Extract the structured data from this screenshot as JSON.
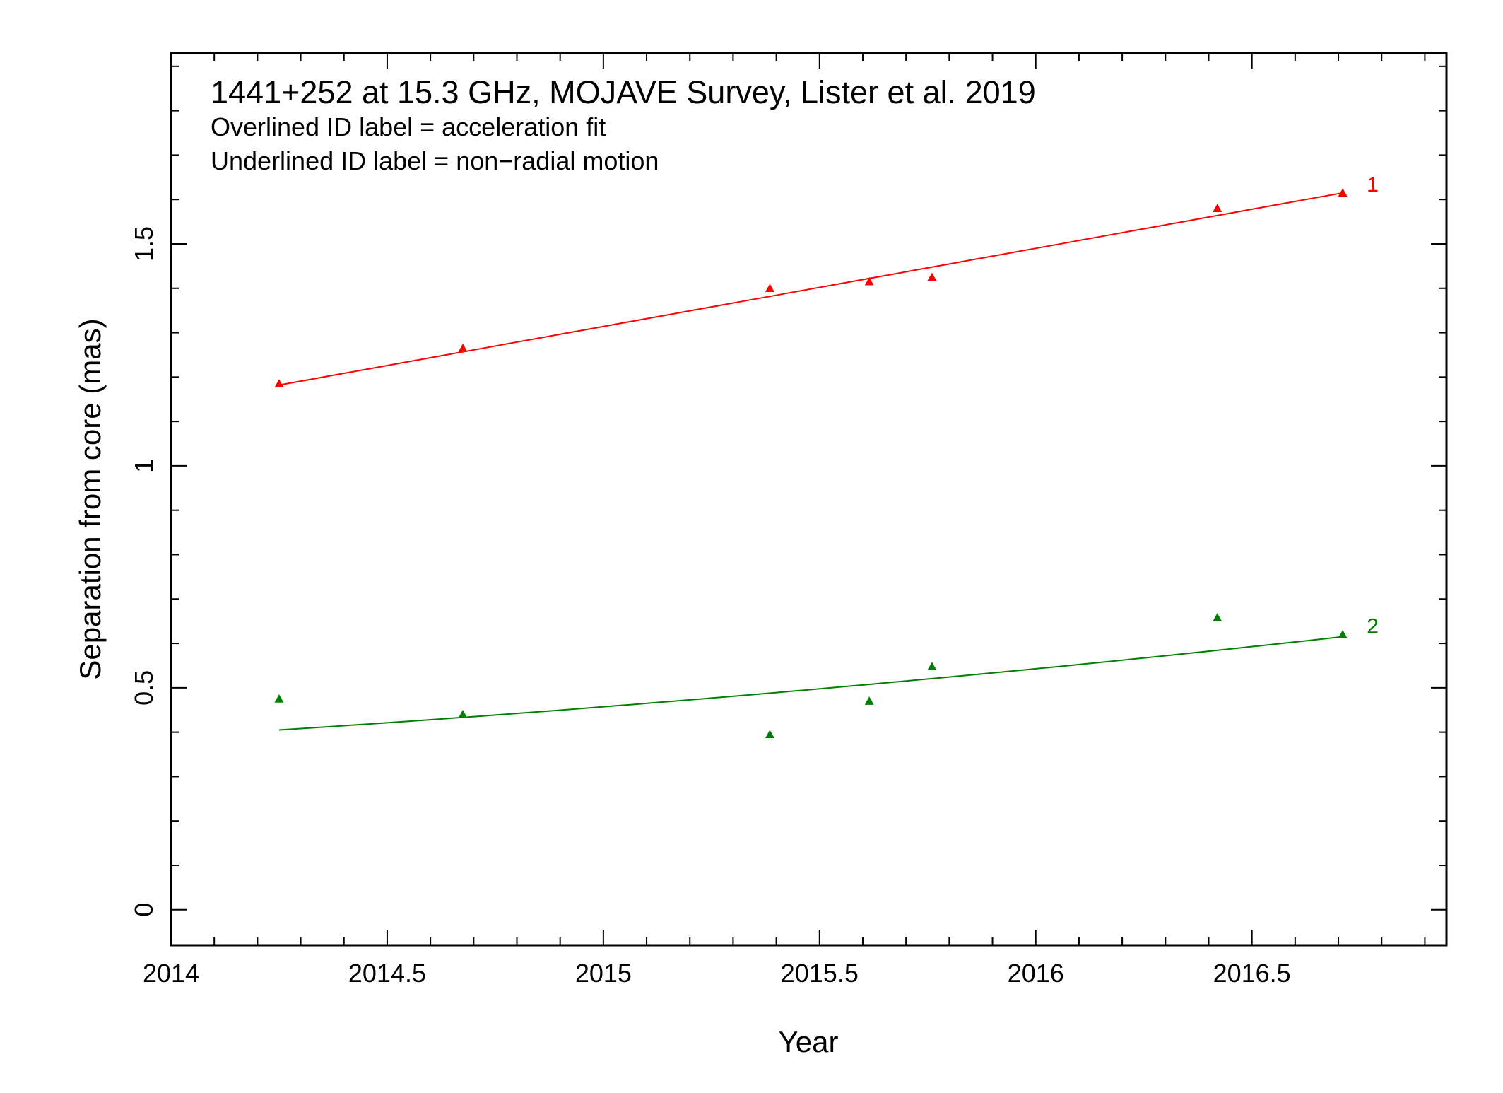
{
  "chart_data": {
    "type": "scatter",
    "title": "1441+252 at 15.3 GHz, MOJAVE Survey, Lister et al. 2019",
    "annotations": [
      "Overlined ID label = acceleration fit",
      "Underlined ID label = non−radial motion"
    ],
    "xlabel": "Year",
    "ylabel": "Separation from core (mas)",
    "xlim": [
      2014.0,
      2016.95
    ],
    "ylim": [
      -0.08,
      1.93
    ],
    "x_major_ticks": [
      2014,
      2014.5,
      2015,
      2015.5,
      2016,
      2016.5
    ],
    "x_tick_labels": [
      "2014",
      "2014.5",
      "2015",
      "2015.5",
      "2016",
      "2016.5"
    ],
    "x_minor_step": 0.1,
    "y_major_ticks": [
      0,
      0.5,
      1,
      1.5
    ],
    "y_tick_labels": [
      "0",
      "0.5",
      "1",
      "1.5"
    ],
    "y_minor_step": 0.1,
    "grid": false,
    "series": [
      {
        "name": "1",
        "color": "#ff0000",
        "marker": "triangle",
        "points": [
          {
            "x": 2014.25,
            "y": 1.185
          },
          {
            "x": 2014.675,
            "y": 1.265
          },
          {
            "x": 2015.385,
            "y": 1.4
          },
          {
            "x": 2015.615,
            "y": 1.415
          },
          {
            "x": 2015.76,
            "y": 1.425
          },
          {
            "x": 2016.42,
            "y": 1.58
          },
          {
            "x": 2016.71,
            "y": 1.615
          }
        ],
        "fit": {
          "from": [
            2014.25,
            1.182
          ],
          "to": [
            2016.71,
            1.615
          ],
          "curvature": 0
        }
      },
      {
        "name": "2",
        "color": "#008000",
        "marker": "triangle",
        "points": [
          {
            "x": 2014.25,
            "y": 0.475
          },
          {
            "x": 2014.675,
            "y": 0.44
          },
          {
            "x": 2015.385,
            "y": 0.395
          },
          {
            "x": 2015.615,
            "y": 0.47
          },
          {
            "x": 2015.76,
            "y": 0.548
          },
          {
            "x": 2016.42,
            "y": 0.658
          },
          {
            "x": 2016.71,
            "y": 0.62
          }
        ],
        "fit": {
          "from": [
            2014.25,
            0.405
          ],
          "to": [
            2016.71,
            0.615
          ],
          "curvature": -0.014
        }
      }
    ]
  }
}
